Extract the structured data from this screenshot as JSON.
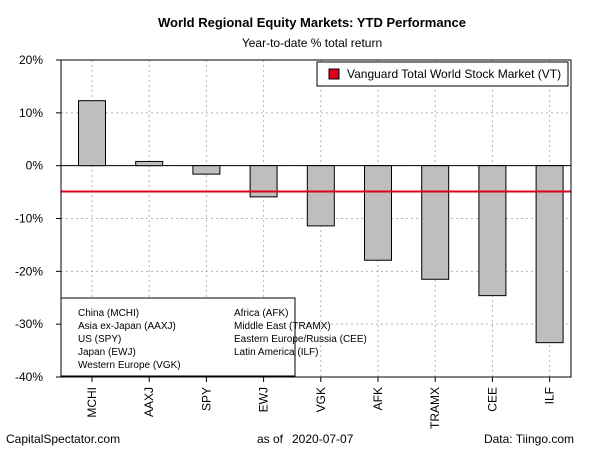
{
  "chart_data": {
    "type": "bar",
    "title": "World Regional Equity Markets: YTD Performance",
    "subtitle": "Year-to-date % total return",
    "categories": [
      "MCHI",
      "AAXJ",
      "SPY",
      "EWJ",
      "VGK",
      "AFK",
      "TRAMX",
      "CEE",
      "ILF"
    ],
    "values": [
      12.3,
      0.8,
      -1.6,
      -5.9,
      -11.4,
      -17.9,
      -21.5,
      -24.6,
      -33.5
    ],
    "ylim": [
      -40,
      20
    ],
    "yticks": [
      20,
      10,
      0,
      -10,
      -20,
      -30,
      -40
    ],
    "ytick_labels": [
      "20%",
      "10%",
      "0%",
      "-10%",
      "-20%",
      "-30%",
      "-40%"
    ],
    "reference_line": {
      "value": -4.9,
      "label": "Vanguard Total World Stock Market (VT)",
      "color": "#e0001a"
    },
    "legend_position": "top-right",
    "grid": true,
    "bar_color": "#bebebe",
    "key_entries": [
      "China (MCHI)",
      "Asia ex-Japan (AAXJ)",
      "US (SPY)",
      "Japan (EWJ)",
      "Western Europe (VGK)",
      "Africa (AFK)",
      "Middle East (TRAMX)",
      "Eastern Europe/Russia (CEE)",
      "Latin America (ILF)"
    ]
  },
  "footer": {
    "source_left": "CapitalSpectator.com",
    "date_prefix": "as of",
    "date": "2020-07-07",
    "source_right": "Data: Tiingo.com"
  }
}
